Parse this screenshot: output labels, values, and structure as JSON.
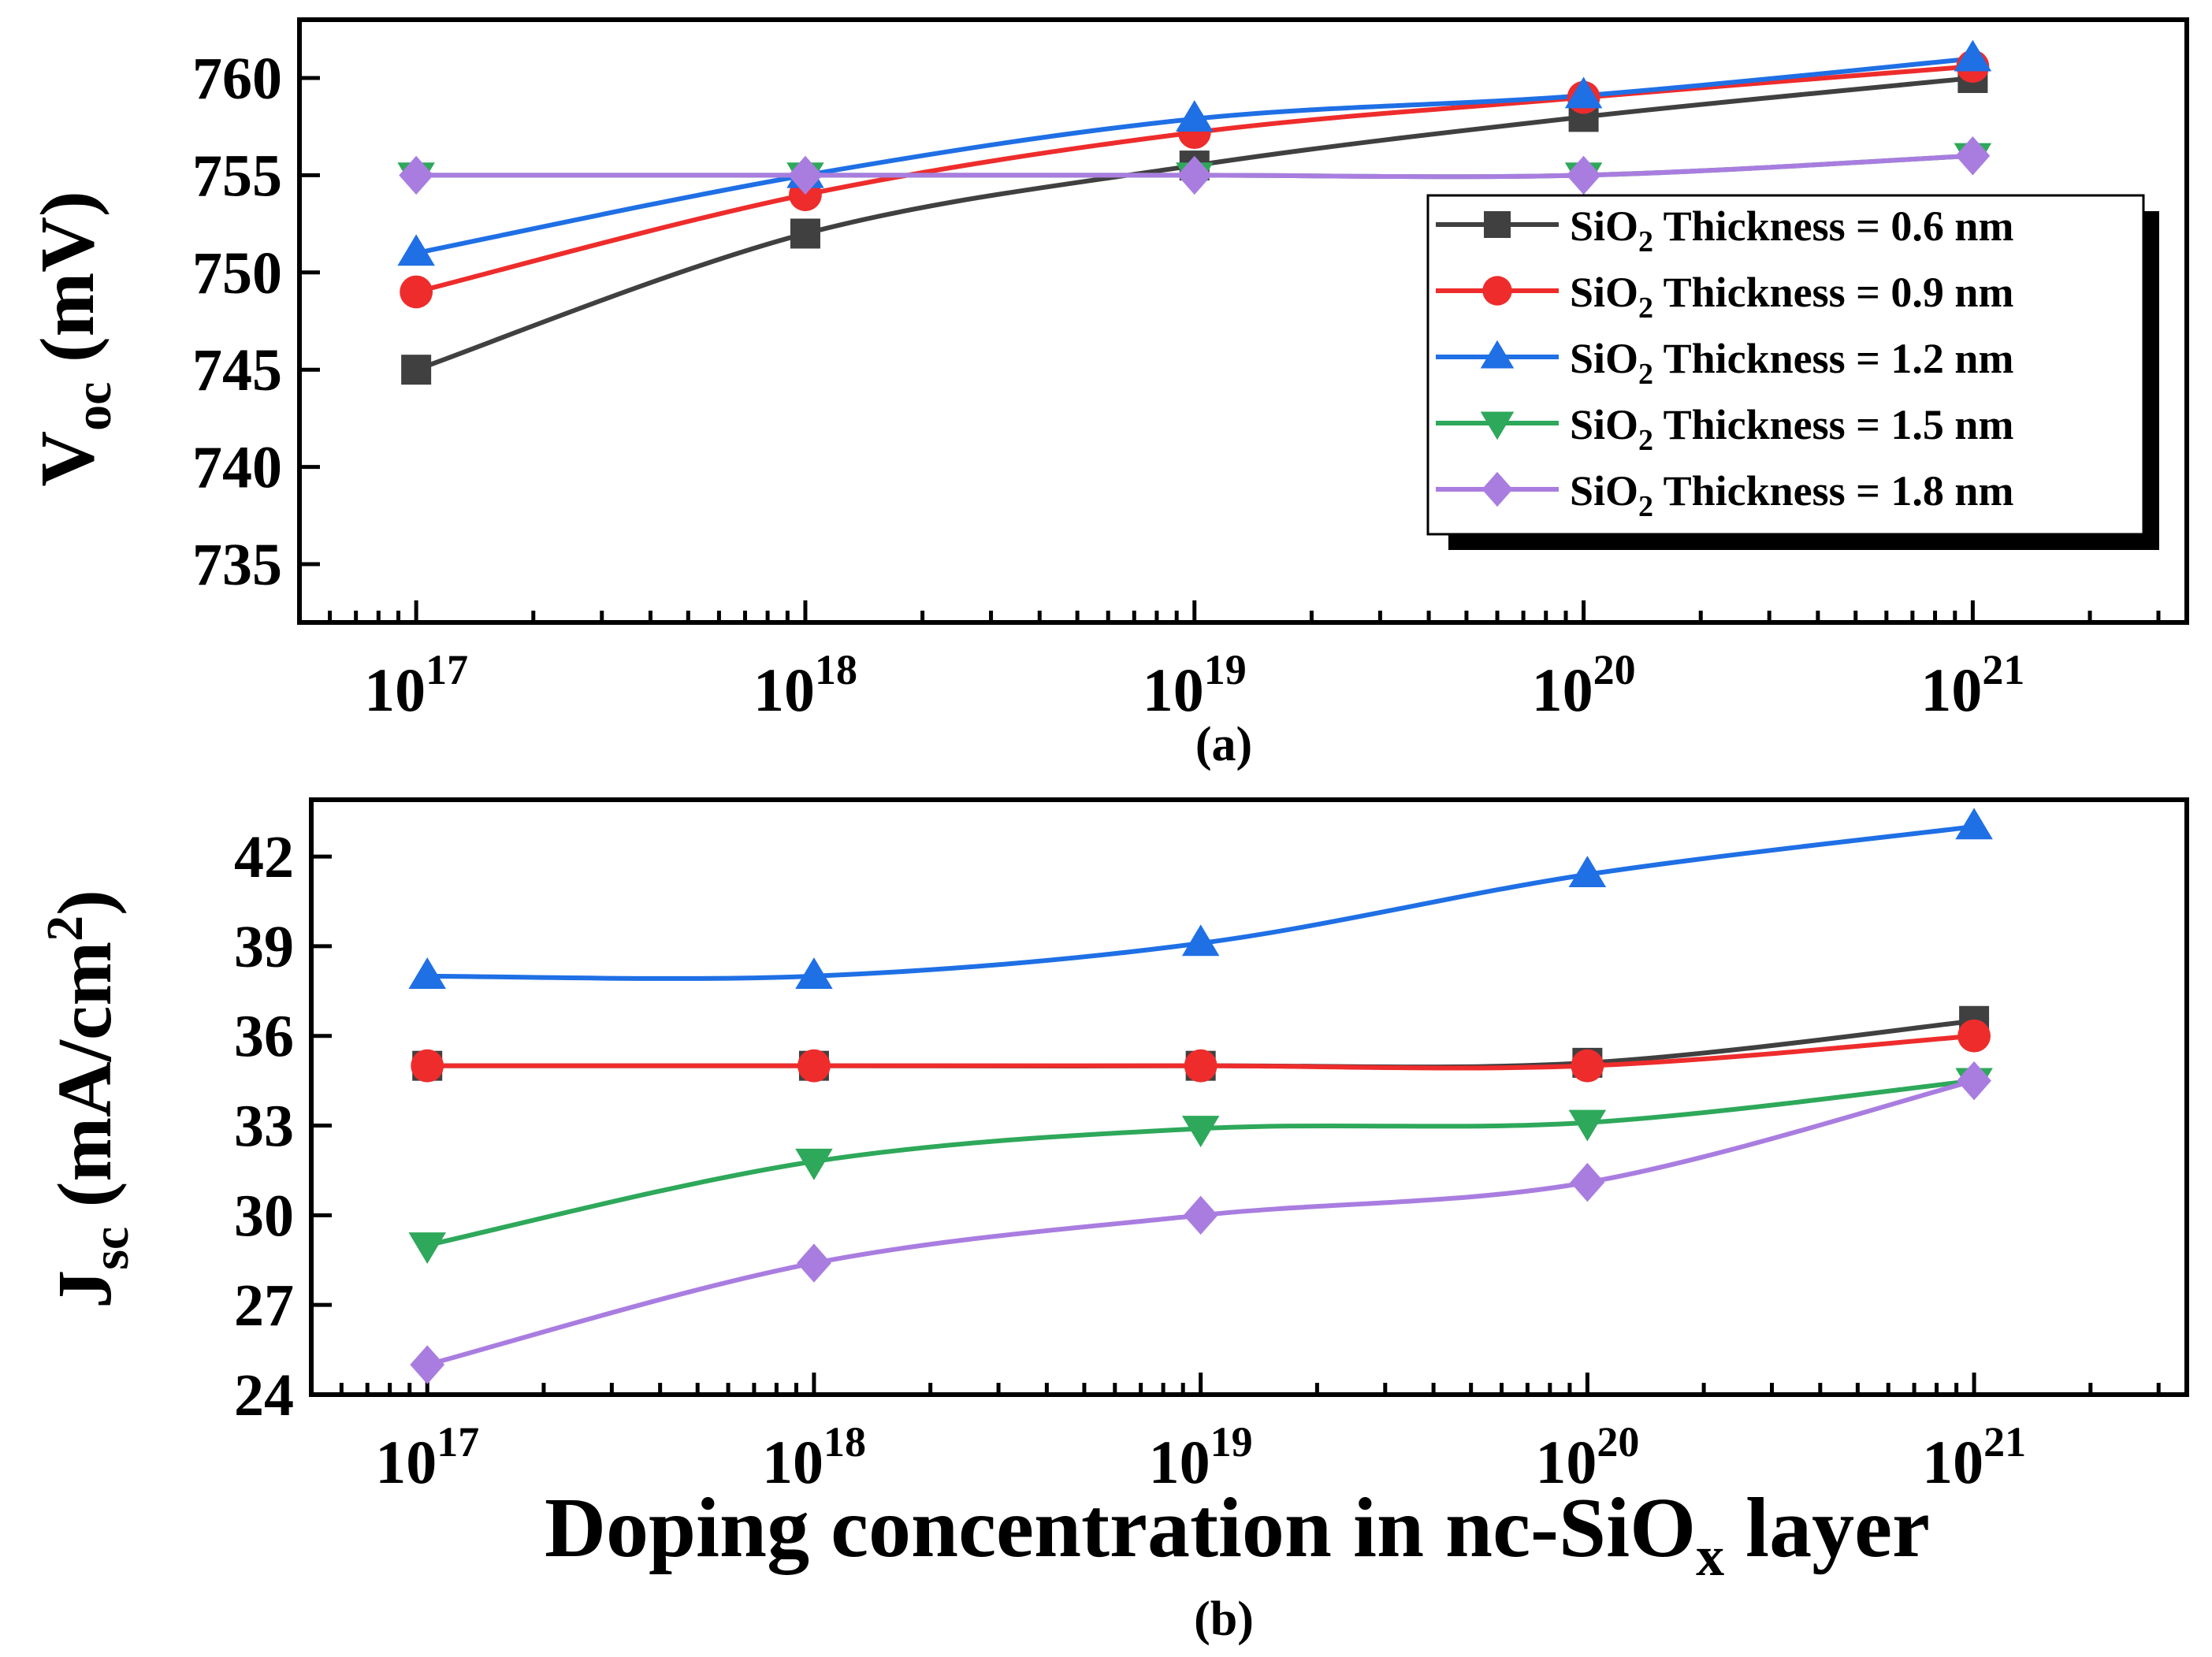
{
  "chart_data": [
    {
      "type": "line",
      "panel_label": "(a)",
      "ylabel": {
        "main": "V",
        "sub": "oc",
        "rest": " (mV)"
      },
      "xscale": "log",
      "x": [
        1e+17,
        1e+18,
        1e+19,
        1e+20,
        1e+21
      ],
      "xticks": [
        {
          "base": "10",
          "exp": "17"
        },
        {
          "base": "10",
          "exp": "18"
        },
        {
          "base": "10",
          "exp": "19"
        },
        {
          "base": "10",
          "exp": "20"
        },
        {
          "base": "10",
          "exp": "21"
        }
      ],
      "ylim": [
        732,
        763
      ],
      "yticks": [
        "735",
        "740",
        "745",
        "750",
        "755",
        "760"
      ],
      "ytick_values": [
        735,
        740,
        745,
        750,
        755,
        760
      ],
      "legend_position": "right",
      "series": [
        {
          "name": "SiO2 Thickness = 0.6 nm",
          "label_pre": "SiO",
          "label_sub": "2",
          "label_post": " Thickness = 0.6 nm",
          "marker": "square",
          "color": "#404040",
          "values": [
            745,
            752,
            755.5,
            758,
            760
          ]
        },
        {
          "name": "SiO2 Thickness = 0.9 nm",
          "label_pre": "SiO",
          "label_sub": "2",
          "label_post": " Thickness = 0.9 nm",
          "marker": "circle",
          "color": "#ee2c2c",
          "values": [
            749,
            754,
            757.2,
            759,
            760.6
          ]
        },
        {
          "name": "SiO2 Thickness = 1.2 nm",
          "label_pre": "SiO",
          "label_sub": "2",
          "label_post": " Thickness = 1.2 nm",
          "marker": "triangle-up",
          "color": "#1f6fe5",
          "values": [
            751,
            755,
            757.9,
            759.1,
            761
          ]
        },
        {
          "name": "SiO2 Thickness = 1.5 nm",
          "label_pre": "SiO",
          "label_sub": "2",
          "label_post": " Thickness = 1.5 nm",
          "marker": "triangle-down",
          "color": "#2ea85a",
          "values": [
            755,
            755,
            755,
            755,
            756
          ]
        },
        {
          "name": "SiO2 Thickness = 1.8 nm",
          "label_pre": "SiO",
          "label_sub": "2",
          "label_post": " Thickness = 1.8 nm",
          "marker": "diamond",
          "color": "#a97de0",
          "values": [
            755,
            755,
            755,
            755,
            756
          ]
        }
      ]
    },
    {
      "type": "line",
      "panel_label": "(b)",
      "ylabel": {
        "main": "J",
        "sub": "sc",
        "rest": " (mA/cm",
        "sup": "2",
        "close": ")"
      },
      "xlabel": {
        "pre": "Doping concentration in nc-SiO",
        "sub": "x",
        "post": " layer"
      },
      "xscale": "log",
      "x": [
        1e+17,
        1e+18,
        1e+19,
        1e+20,
        1e+21
      ],
      "xticks": [
        {
          "base": "10",
          "exp": "17"
        },
        {
          "base": "10",
          "exp": "18"
        },
        {
          "base": "10",
          "exp": "19"
        },
        {
          "base": "10",
          "exp": "20"
        },
        {
          "base": "10",
          "exp": "21"
        }
      ],
      "ylim": [
        24,
        43.9
      ],
      "yticks": [
        "24",
        "27",
        "30",
        "33",
        "36",
        "39",
        "42"
      ],
      "ytick_values": [
        24,
        27,
        30,
        33,
        36,
        39,
        42
      ],
      "series": [
        {
          "name": "SiO2 Thickness = 0.6 nm",
          "marker": "square",
          "color": "#404040",
          "values": [
            35,
            35,
            35,
            35.1,
            36.5
          ]
        },
        {
          "name": "SiO2 Thickness = 0.9 nm",
          "marker": "circle",
          "color": "#ee2c2c",
          "values": [
            35,
            35,
            35,
            35,
            36
          ]
        },
        {
          "name": "SiO2 Thickness = 1.2 nm",
          "marker": "triangle-up",
          "color": "#1f6fe5",
          "values": [
            38,
            38,
            39.1,
            41.4,
            43
          ]
        },
        {
          "name": "SiO2 Thickness = 1.5 nm",
          "marker": "triangle-down",
          "color": "#2ea85a",
          "values": [
            29,
            31.8,
            32.9,
            33.1,
            34.5
          ]
        },
        {
          "name": "SiO2 Thickness = 1.8 nm",
          "marker": "diamond",
          "color": "#a97de0",
          "values": [
            25,
            28.4,
            30,
            31.1,
            34.5
          ]
        }
      ]
    }
  ]
}
